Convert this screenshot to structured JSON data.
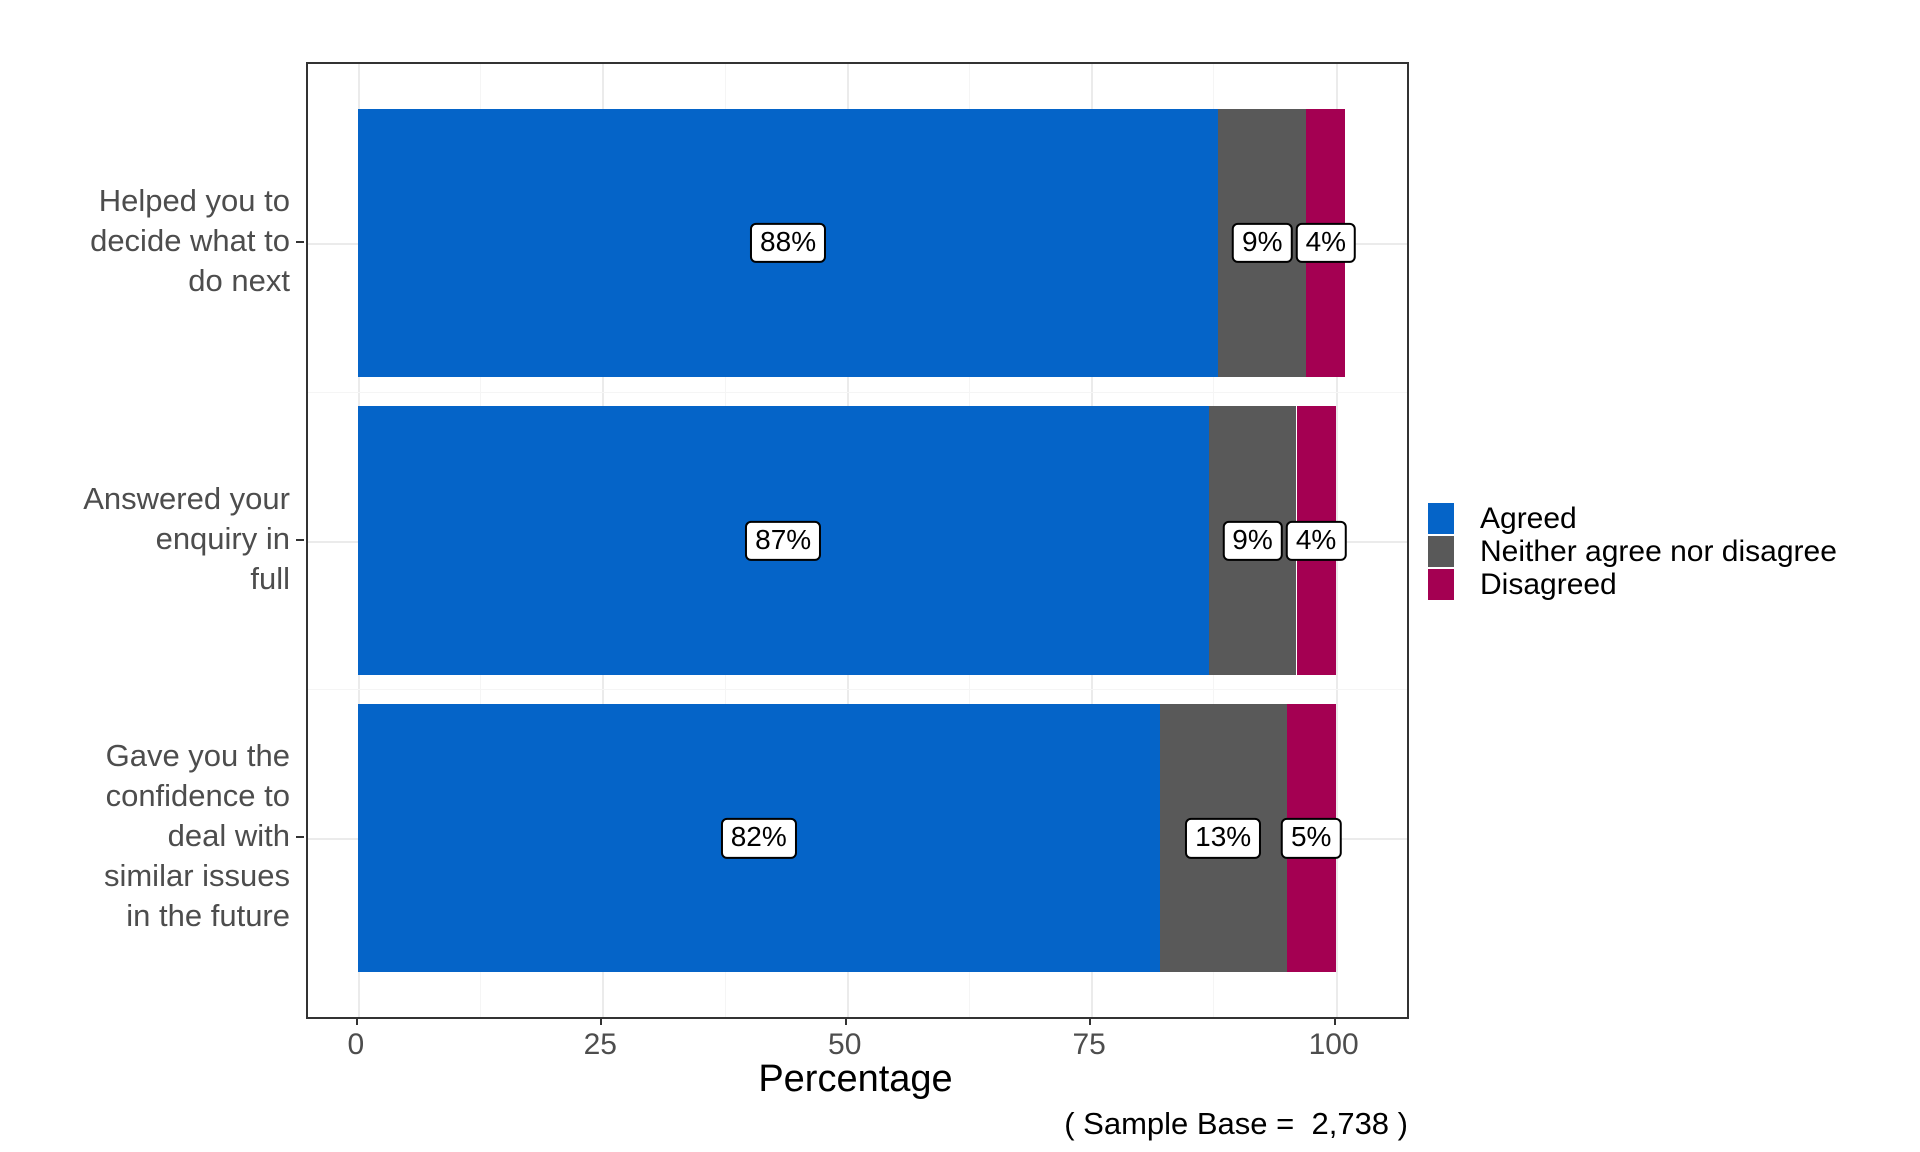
{
  "chart_data": {
    "type": "bar",
    "orientation": "horizontal",
    "stacked": true,
    "title": "",
    "xlabel": "Percentage",
    "ylabel": "",
    "categories": [
      "Helped you to\ndecide what to\ndo next",
      "Answered your\nenquiry in\nfull",
      "Gave you the\nconfidence to\ndeal with\nsimilar issues\nin the future"
    ],
    "series": [
      {
        "name": "Agreed",
        "color": "#0564c8",
        "values": [
          88,
          87,
          82
        ]
      },
      {
        "name": "Neither agree nor disagree",
        "color": "#595959",
        "values": [
          9,
          9,
          13
        ]
      },
      {
        "name": "Disagreed",
        "color": "#a40052",
        "values": [
          4,
          4,
          5
        ]
      }
    ],
    "bar_labels": [
      [
        "88%",
        "9%",
        "4%"
      ],
      [
        "87%",
        "9%",
        "4%"
      ],
      [
        "82%",
        "13%",
        "5%"
      ]
    ],
    "xticks": [
      0,
      25,
      50,
      75,
      100
    ],
    "xtick_labels": [
      "0",
      "25",
      "50",
      "75",
      "100"
    ],
    "xminor_ticks": [
      12.5,
      37.5,
      62.5,
      87.5
    ],
    "xlim": [
      -5.1,
      107.3
    ],
    "ylim": [
      0.4,
      3.6
    ],
    "bar_width": 0.9,
    "grid": true,
    "legend_position": "right",
    "caption": "( Sample Base =  2,738 )"
  },
  "colors": {
    "panel_border": "#333333",
    "grid_major": "#ebebeb",
    "grid_minor": "#f5f5f5",
    "axis_text": "#4d4d4d",
    "text": "#000000",
    "background": "#ffffff"
  }
}
